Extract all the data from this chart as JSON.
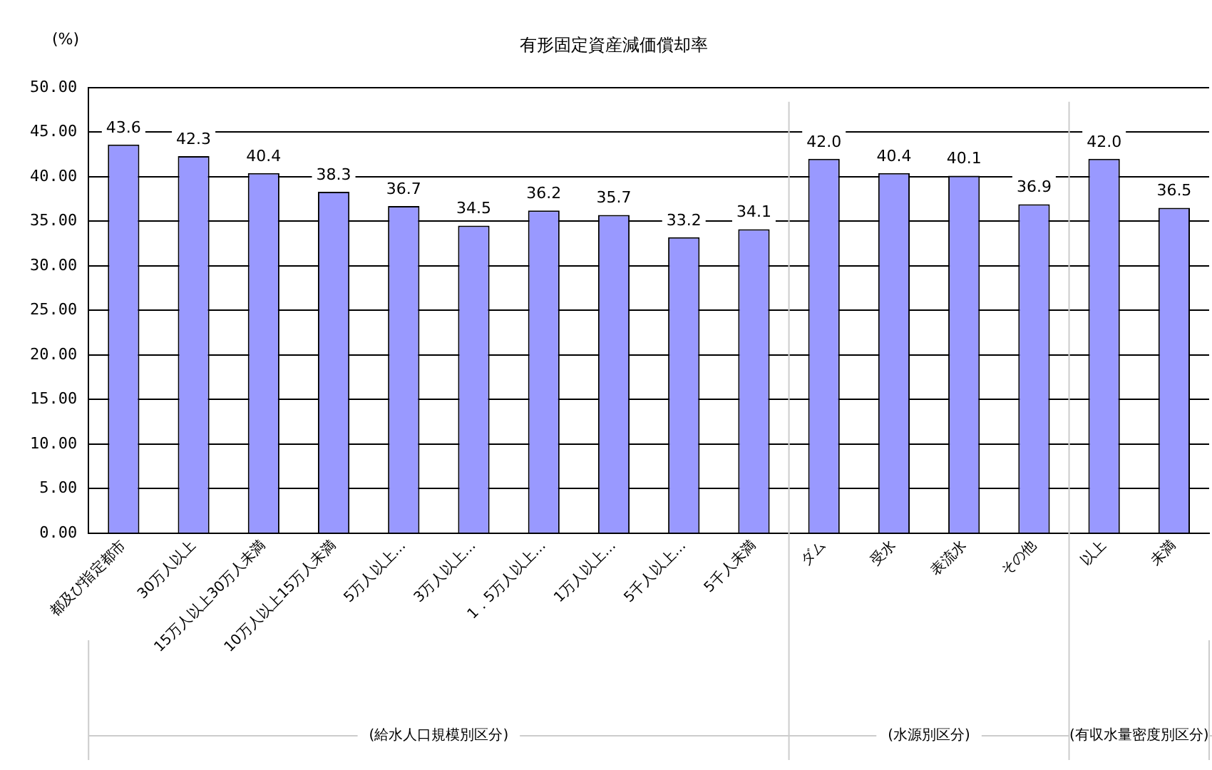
{
  "chart_data": {
    "type": "bar",
    "title": "有形固定資産減価償却率",
    "ylabel": "(%)",
    "categories": [
      "都及び指定都市",
      "30万人以上",
      "15万人以上30万人未満",
      "10万人以上15万人未満",
      "5万人以上…",
      "3万人以上…",
      "1．5万人以上…",
      "1万人以上…",
      "5千人以上…",
      "5千人未満",
      "ダム",
      "受水",
      "表流水",
      "その他",
      "以上",
      "未満"
    ],
    "values": [
      43.6,
      42.3,
      40.4,
      38.3,
      36.7,
      34.5,
      36.2,
      35.7,
      33.2,
      34.1,
      42.0,
      40.4,
      40.1,
      36.9,
      42.0,
      36.5
    ],
    "value_labels": [
      "43.6",
      "42.3",
      "40.4",
      "38.3",
      "36.7",
      "34.5",
      "36.2",
      "35.7",
      "33.2",
      "34.1",
      "42.0",
      "40.4",
      "40.1",
      "36.9",
      "42.0",
      "36.5"
    ],
    "color": "#9999ff",
    "ylim": [
      0,
      50
    ],
    "yticks": [
      {
        "value": 0,
        "label": "0.00"
      },
      {
        "value": 5,
        "label": "5.00"
      },
      {
        "value": 10,
        "label": "10.00"
      },
      {
        "value": 15,
        "label": "15.00"
      },
      {
        "value": 20,
        "label": "20.00"
      },
      {
        "value": 25,
        "label": "25.00"
      },
      {
        "value": 30,
        "label": "30.00"
      },
      {
        "value": 35,
        "label": "35.00"
      },
      {
        "value": 40,
        "label": "40.00"
      },
      {
        "value": 45,
        "label": "45.00"
      },
      {
        "value": 50,
        "label": "50.00"
      }
    ],
    "grid": "y",
    "annotations": [
      "(給水人口規模別区分)",
      "(水源別区分)",
      "(有収水量密度別区分)"
    ]
  }
}
